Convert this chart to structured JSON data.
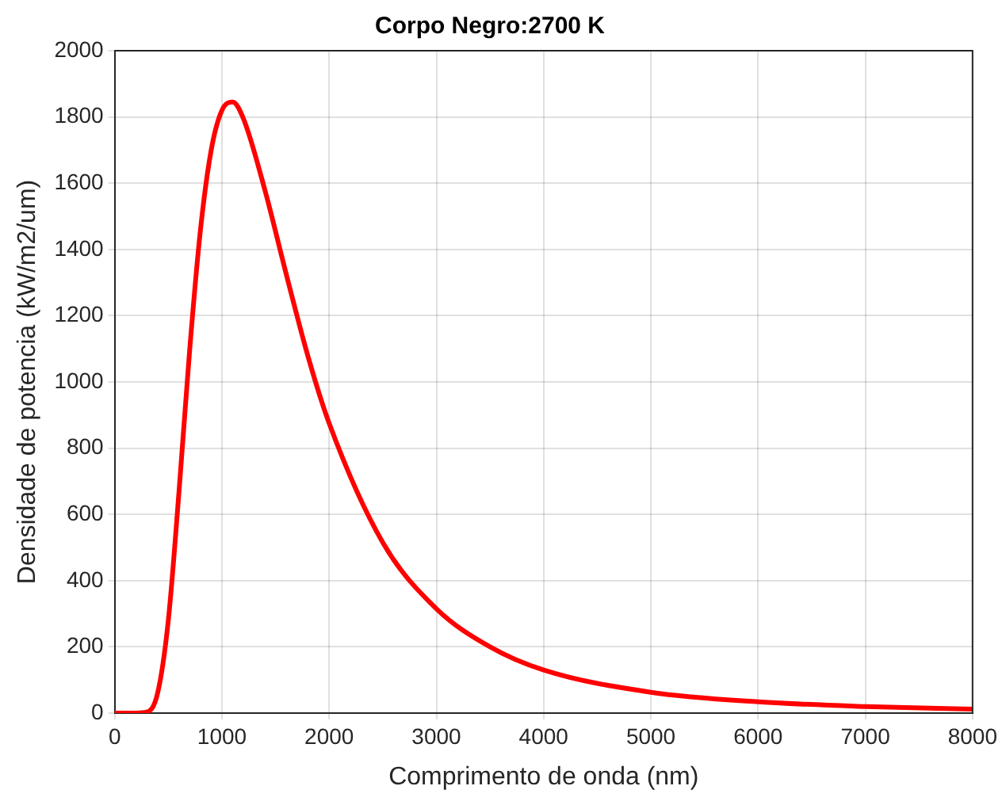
{
  "chart_data": {
    "type": "line",
    "title": "Corpo Negro:2700 K",
    "xlabel": "Comprimento de onda (nm)",
    "ylabel": "Densidade de potencia (kW/m2/um)",
    "x": [
      0,
      100,
      200,
      300,
      400,
      500,
      600,
      700,
      800,
      900,
      1000,
      1100,
      1200,
      1400,
      1600,
      1800,
      2000,
      2500,
      3000,
      3500,
      4000,
      5000,
      6000,
      7000,
      8000
    ],
    "series": [
      {
        "color": "#ff0000",
        "values": [
          0,
          0,
          0,
          3,
          60,
          280,
          670,
          1100,
          1460,
          1700,
          1820,
          1845,
          1795,
          1580,
          1325,
          1080,
          875,
          515,
          315,
          200,
          130,
          63,
          34,
          20,
          12
        ]
      }
    ],
    "xlim": [
      0,
      8000
    ],
    "xticks": [
      0,
      1000,
      2000,
      3000,
      4000,
      5000,
      6000,
      7000,
      8000
    ],
    "ylim": [
      0,
      2000
    ],
    "yticks": [
      0,
      200,
      400,
      600,
      800,
      1000,
      1200,
      1400,
      1600,
      1800,
      2000
    ],
    "grid": true,
    "legend": false,
    "marker": "none",
    "line_style": "solid"
  }
}
